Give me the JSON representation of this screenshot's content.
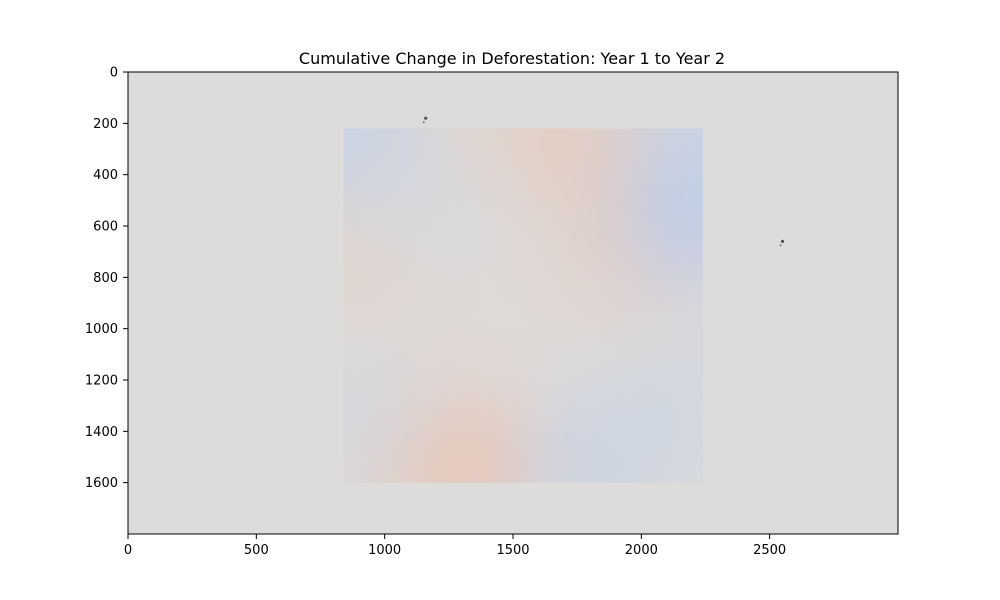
{
  "chart_data": {
    "type": "heatmap",
    "title": "Cumulative Change in Deforestation: Year 1 to Year 2",
    "xlabel": "",
    "ylabel": "",
    "xlim": [
      0,
      3000
    ],
    "ylim": [
      1800,
      0
    ],
    "x_ticks": [
      0,
      500,
      1000,
      1500,
      2000,
      2500
    ],
    "y_ticks": [
      0,
      200,
      400,
      600,
      800,
      1000,
      1200,
      1400,
      1600
    ],
    "x_tick_labels": [
      "0",
      "500",
      "1000",
      "1500",
      "2000",
      "2500"
    ],
    "y_tick_labels": [
      "0",
      "200",
      "400",
      "600",
      "800",
      "1000",
      "1200",
      "1400",
      "1600"
    ],
    "colormap": "coolwarm",
    "background_color": "#dddcdb",
    "data_extent": {
      "x": [
        840,
        2240
      ],
      "y": [
        220,
        1600
      ]
    },
    "grid": false,
    "value_regions": [
      {
        "x": 1780,
        "y": 280,
        "value": 0.35
      },
      {
        "x": 1950,
        "y": 700,
        "value": 0.25
      },
      {
        "x": 1270,
        "y": 1530,
        "value": 0.55
      },
      {
        "x": 1000,
        "y": 1450,
        "value": 0.3
      },
      {
        "x": 890,
        "y": 700,
        "value": 0.2
      },
      {
        "x": 1450,
        "y": 240,
        "value": 0.2
      },
      {
        "x": 2200,
        "y": 560,
        "value": -0.55
      },
      {
        "x": 2220,
        "y": 260,
        "value": -0.35
      },
      {
        "x": 880,
        "y": 260,
        "value": -0.4
      },
      {
        "x": 1800,
        "y": 1540,
        "value": -0.3
      },
      {
        "x": 880,
        "y": 1360,
        "value": -0.15
      },
      {
        "x": 1350,
        "y": 1000,
        "value": 0.05
      },
      {
        "x": 1150,
        "y": 500,
        "value": -0.1
      },
      {
        "x": 2150,
        "y": 1300,
        "value": -0.2
      }
    ],
    "specks": [
      {
        "x": 1160,
        "y": 180
      },
      {
        "x": 2550,
        "y": 660
      }
    ]
  }
}
